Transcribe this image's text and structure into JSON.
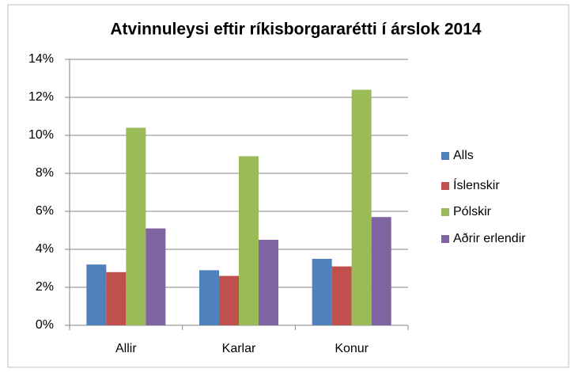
{
  "chart_data": {
    "type": "bar",
    "title": "Atvinnuleysi eftir ríkisborgararétti í árslok 2014",
    "categories": [
      "Allir",
      "Karlar",
      "Konur"
    ],
    "series": [
      {
        "name": "Alls",
        "color": "#4f81bd",
        "values": [
          3.2,
          2.9,
          3.5
        ]
      },
      {
        "name": "Íslenskir",
        "color": "#c0504d",
        "values": [
          2.8,
          2.6,
          3.1
        ]
      },
      {
        "name": "Pólskir",
        "color": "#9bbb59",
        "values": [
          10.4,
          8.9,
          12.4
        ]
      },
      {
        "name": "Aðrir erlendir",
        "color": "#8064a2",
        "values": [
          5.1,
          4.5,
          5.7
        ]
      }
    ],
    "ylim": [
      0,
      14
    ],
    "yticks": [
      {
        "value": 0,
        "label": "0%"
      },
      {
        "value": 2,
        "label": "2%"
      },
      {
        "value": 4,
        "label": "4%"
      },
      {
        "value": 6,
        "label": "6%"
      },
      {
        "value": 8,
        "label": "8%"
      },
      {
        "value": 10,
        "label": "10%"
      },
      {
        "value": 12,
        "label": "12%"
      },
      {
        "value": 14,
        "label": "14%"
      }
    ],
    "grid": true,
    "legend": "right"
  }
}
